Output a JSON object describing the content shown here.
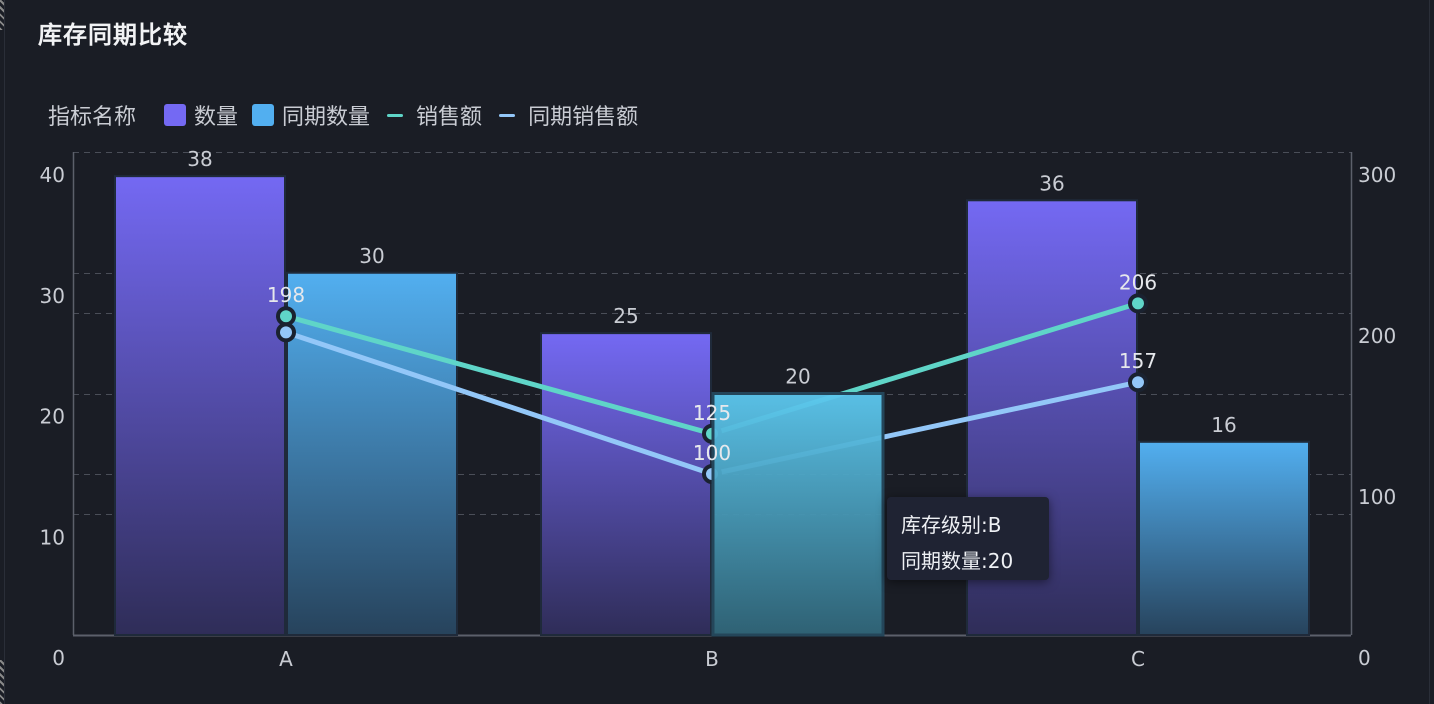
{
  "title": "库存同期比较",
  "legend": {
    "title": "指标名称",
    "items": [
      {
        "label": "数量",
        "type": "bar",
        "color": "#7469f3"
      },
      {
        "label": "同期数量",
        "type": "bar",
        "color": "#52aff0"
      },
      {
        "label": "销售额",
        "type": "line",
        "color": "#5fd5c8"
      },
      {
        "label": "同期销售额",
        "type": "line",
        "color": "#93c7f8"
      }
    ]
  },
  "tooltip": {
    "line1": "库存级别:B",
    "line2": "同期数量:20"
  },
  "colors": {
    "background": "#1a1d25",
    "bar_qty": "#7469f3",
    "bar_prev_qty": "#52aff0",
    "bar_prev_qty_highlight": "#5cc8ef",
    "line_sales": "#5fd5c8",
    "line_prev_sales": "#93c7f8",
    "grid": "#4a4e58",
    "axis": "#5c606b",
    "text": "#c9ccd3"
  },
  "chart_data": {
    "type": "bar",
    "title": "库存同期比较",
    "xlabel": "",
    "categories": [
      "A",
      "B",
      "C"
    ],
    "series": [
      {
        "name": "数量",
        "type": "bar",
        "axis": "left",
        "values": [
          38,
          25,
          36
        ],
        "labels": [
          "38",
          "25",
          "36"
        ]
      },
      {
        "name": "同期数量",
        "type": "bar",
        "axis": "left",
        "values": [
          30,
          20,
          16
        ],
        "labels": [
          "30",
          "20",
          "16"
        ]
      },
      {
        "name": "销售额",
        "type": "line",
        "axis": "right",
        "values": [
          198,
          125,
          206
        ],
        "labels": [
          "198",
          "125",
          "206"
        ]
      },
      {
        "name": "同期销售额",
        "type": "line",
        "axis": "right",
        "values": [
          188,
          100,
          157
        ],
        "labels": [
          "",
          "100",
          "157"
        ]
      }
    ],
    "left_axis": {
      "ylim": [
        0,
        40
      ],
      "ticks": [
        "0",
        "10",
        "20",
        "30",
        "40"
      ]
    },
    "right_axis": {
      "ylim": [
        0,
        300
      ],
      "ticks": [
        "0",
        "100",
        "200",
        "300"
      ]
    },
    "grid": "dashed",
    "legend_position": "top-left",
    "highlighted": {
      "category": "B",
      "series": "同期数量"
    }
  }
}
